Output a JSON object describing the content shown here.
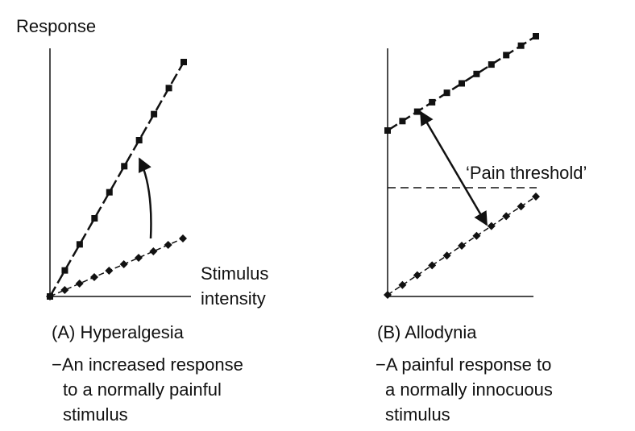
{
  "panels": [
    {
      "y_label": "Response",
      "x_label": [
        "Stimulus",
        "intensity"
      ],
      "title": "(A) Hyperalgesia",
      "description": [
        "−An increased response",
        "to a normally painful",
        "stimulus"
      ]
    },
    {
      "title": "(B) Allodynia",
      "annotation": "‘Pain threshold’",
      "description": [
        "−A painful  response to",
        "a normally innocuous",
        "stimulus"
      ]
    }
  ]
}
